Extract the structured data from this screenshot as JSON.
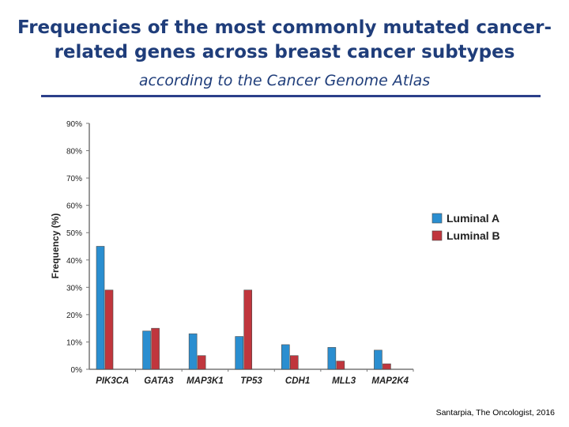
{
  "title_line1": "Frequencies of the most commonly mutated cancer-",
  "title_line2": "related genes across breast cancer subtypes",
  "subtitle": "according to the Cancer Genome Atlas",
  "source": "Santarpia, The Oncologist, 2016",
  "colors": {
    "accent": "#1f3d7a",
    "rule": "#2b3f8a",
    "luminal_a": "#2a8ed0",
    "luminal_b": "#c0363d"
  },
  "chart_data": {
    "type": "bar",
    "categories": [
      "PIK3CA",
      "GATA3",
      "MAP3K1",
      "TP53",
      "CDH1",
      "MLL3",
      "MAP2K4"
    ],
    "series": [
      {
        "name": "Luminal A",
        "values": [
          45,
          14,
          13,
          12,
          9,
          8,
          7
        ]
      },
      {
        "name": "Luminal B",
        "values": [
          29,
          15,
          5,
          29,
          5,
          3,
          2
        ]
      }
    ],
    "ylabel": "Frequency (%)",
    "xlabel": "",
    "yticks": [
      "0%",
      "10%",
      "20%",
      "30%",
      "40%",
      "50%",
      "60%",
      "70%",
      "80%",
      "90%"
    ],
    "ylim": [
      0,
      90
    ],
    "legend_position": "right",
    "grid": false
  }
}
